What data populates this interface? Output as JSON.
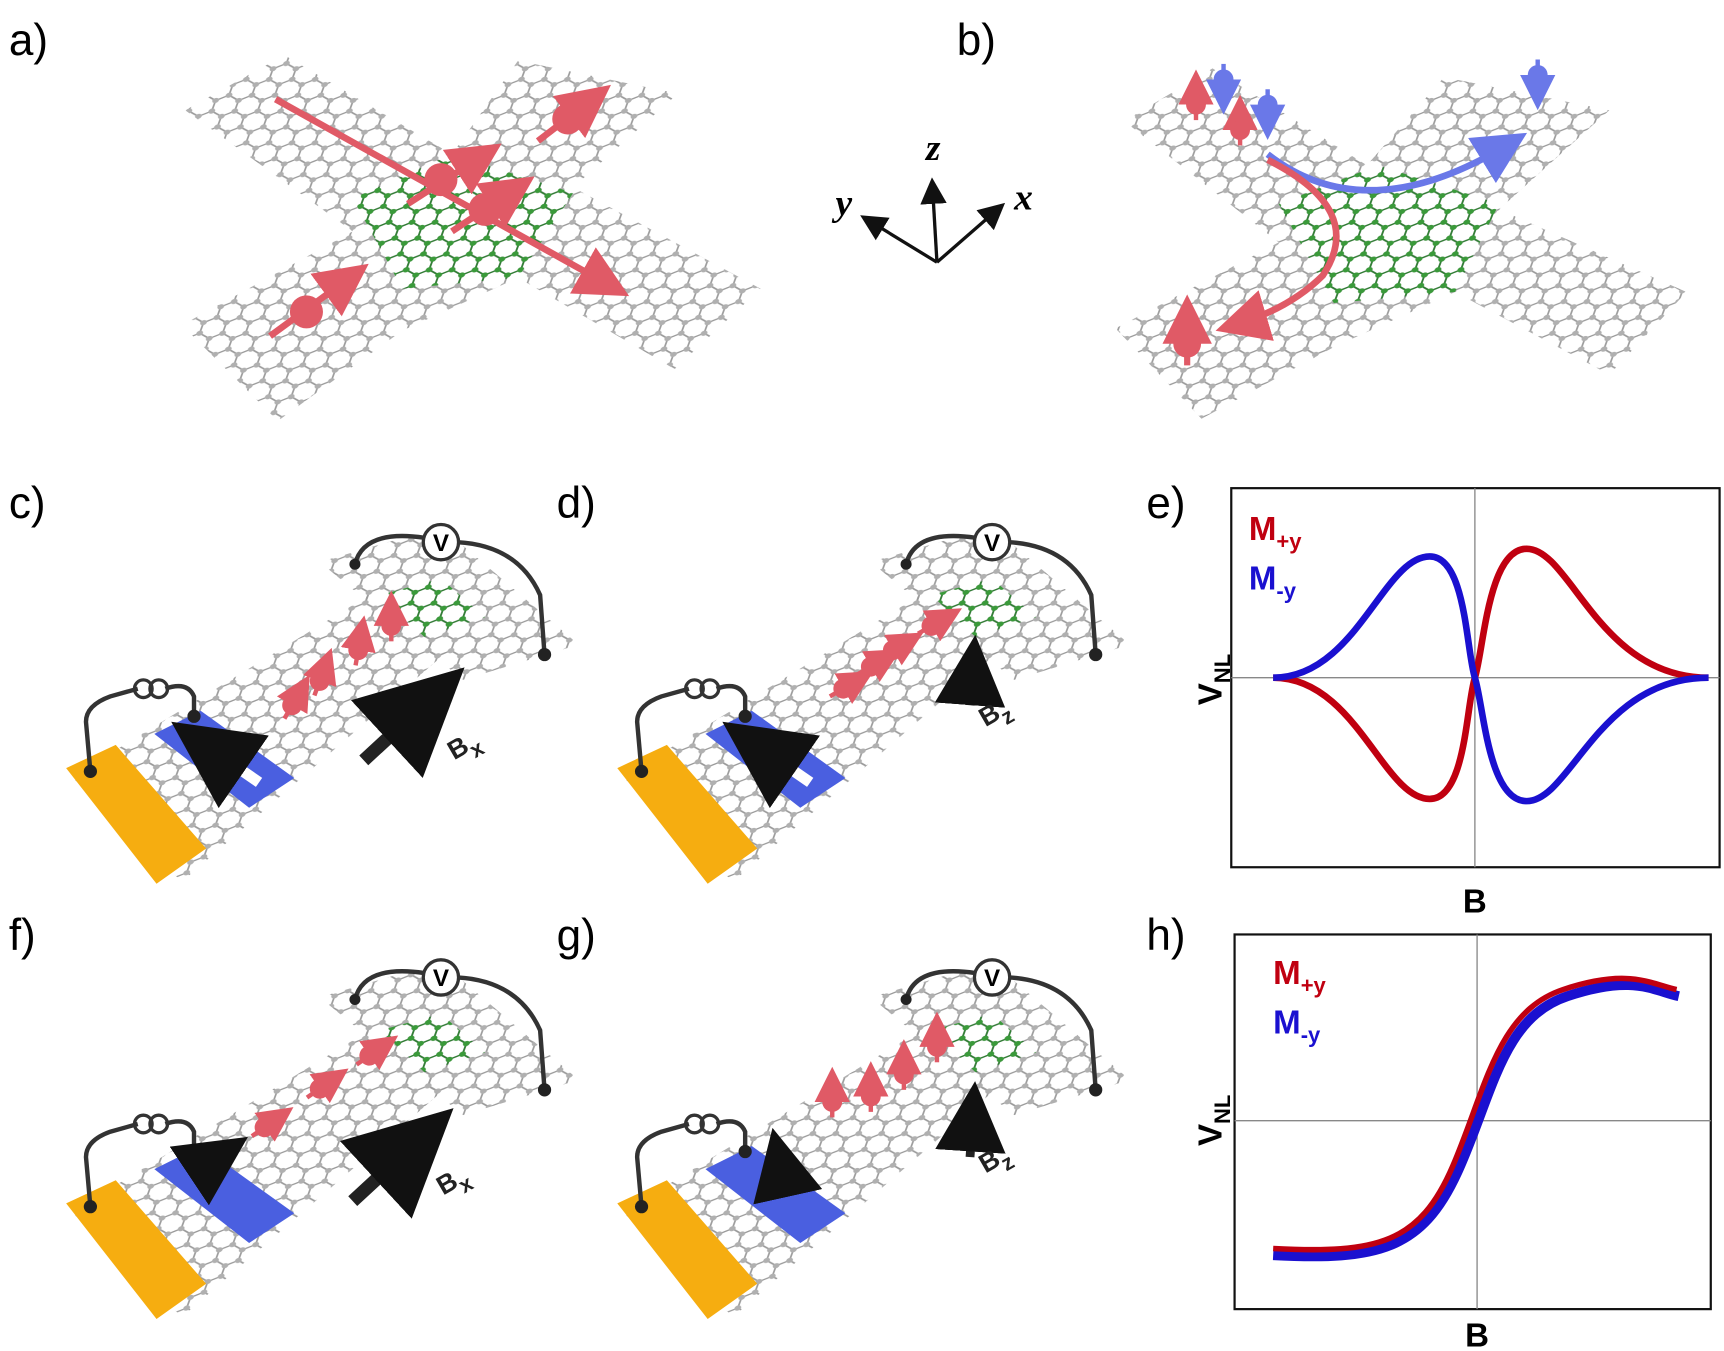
{
  "panels": {
    "a": "a)",
    "b": "b)",
    "c": "c)",
    "d": "d)",
    "e": "e)",
    "f": "f)",
    "g": "g)",
    "h": "h)"
  },
  "axes3d": {
    "x": "x",
    "y": "y",
    "z": "z"
  },
  "voltmeter": "V",
  "fields": {
    "bx": {
      "main": "B",
      "sub": "x"
    },
    "bz": {
      "main": "B",
      "sub": "z"
    }
  },
  "plot_e": {
    "legend": [
      {
        "main": "M",
        "sub": "+y"
      },
      {
        "main": "M",
        "sub": "-y"
      }
    ],
    "ylabel": {
      "main": "V",
      "sub": "NL"
    },
    "xlabel": "B"
  },
  "plot_h": {
    "legend": [
      {
        "main": "M",
        "sub": "+y"
      },
      {
        "main": "M",
        "sub": "-y"
      }
    ],
    "ylabel": {
      "main": "V",
      "sub": "NL"
    },
    "xlabel": "B"
  }
}
